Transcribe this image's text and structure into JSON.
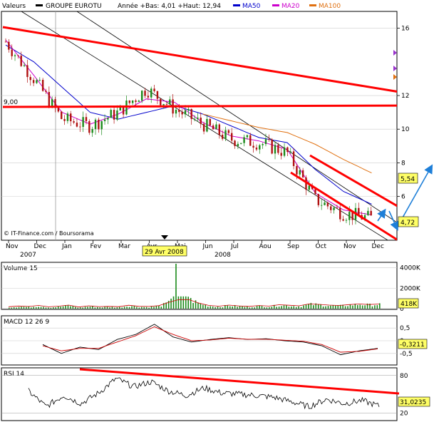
{
  "header": {
    "series_label": "Valeurs",
    "name": "GROUPE EUROTU",
    "range_text": "Année +Bas: 4,01 +Haut: 12,94",
    "ma50_label": "MA50",
    "ma20_label": "MA20",
    "ma100_label": "MA100"
  },
  "colors": {
    "price": "#1a8a1a",
    "price_down": "#b01010",
    "ma50": "#0000cc",
    "ma20": "#cc00cc",
    "ma100": "#e07010",
    "trendline": "#ff0000",
    "channel": "#000000",
    "volume": "#1a8a1a",
    "arrow": "#1e7fd8"
  },
  "chart_data": [
    {
      "type": "line",
      "title": "GROUPE EUROTU",
      "ylim": [
        3.4,
        17
      ],
      "y_ticks": [
        "16",
        "12",
        "10",
        "8",
        "6"
      ],
      "x_ticks": [
        "Nov",
        "Dec",
        "Jan",
        "Fev",
        "Mar",
        "Avr",
        "Mai",
        "Jun",
        "Jul",
        "Aou",
        "Sep",
        "Oct",
        "Nov",
        "Dec"
      ],
      "year_labels": [
        "2007",
        "2008"
      ],
      "annotations": {
        "level_label": "9,00",
        "date_marker": "29 Avr 2008",
        "last_price": "4,72",
        "ma_value": "5,54",
        "credit": "© IT-Finance.com / Boursorama"
      },
      "series": [
        {
          "name": "Valeurs",
          "x": [
            "Nov",
            "Dec",
            "Jan",
            "Fev",
            "Mar",
            "Avr",
            "Mai",
            "Jun",
            "Jul",
            "Aou",
            "Sep",
            "Oct",
            "Nov",
            "Dec"
          ],
          "values": [
            15.2,
            13.0,
            10.6,
            10.2,
            11.0,
            12.4,
            11.2,
            10.3,
            9.4,
            9.2,
            8.6,
            5.8,
            5.0,
            4.7
          ]
        },
        {
          "name": "MA50",
          "x": [
            "Nov",
            "Dec",
            "Jan",
            "Fev",
            "Mar",
            "Avr",
            "Mai",
            "Jun",
            "Jul",
            "Aou",
            "Sep",
            "Oct",
            "Nov",
            "Dec"
          ],
          "values": [
            15.0,
            14.0,
            12.5,
            11.0,
            10.6,
            11.0,
            11.4,
            10.9,
            10.2,
            9.5,
            9.2,
            7.6,
            6.3,
            5.54
          ]
        },
        {
          "name": "MA20",
          "x": [
            "Nov",
            "Dec",
            "Jan",
            "Fev",
            "Mar",
            "Avr",
            "Mai",
            "Jun",
            "Jul",
            "Aou",
            "Sep",
            "Oct",
            "Nov",
            "Dec"
          ],
          "values": [
            15.3,
            13.2,
            11.0,
            10.3,
            10.9,
            11.8,
            11.6,
            10.4,
            9.6,
            9.3,
            8.8,
            6.2,
            5.2,
            4.9
          ]
        },
        {
          "name": "MA100",
          "x": [
            "Jun",
            "Jul",
            "Aou",
            "Sep",
            "Oct",
            "Nov",
            "Dec"
          ],
          "values": [
            10.9,
            10.5,
            10.1,
            9.8,
            9.1,
            8.2,
            7.4
          ]
        }
      ]
    },
    {
      "type": "bar",
      "title": "Volume 15",
      "y_ticks": [
        "4000K",
        "2000K",
        "0"
      ],
      "last_value": "418K",
      "ylim": [
        0,
        4400
      ],
      "values": [
        120,
        200,
        150,
        260,
        110,
        180,
        300,
        90,
        220,
        140,
        160,
        130,
        280,
        170,
        150,
        240,
        600,
        4400,
        900,
        520,
        260,
        180,
        300,
        210,
        160,
        250,
        190,
        340,
        280,
        220,
        420,
        380,
        300,
        260,
        350,
        420,
        360,
        418
      ]
    },
    {
      "type": "line",
      "title": "MACD 12 26 9",
      "y_ticks": [
        "0,5",
        "0",
        "-0,5"
      ],
      "last_value": "-0,3211",
      "ylim": [
        -0.9,
        0.9
      ],
      "series": [
        {
          "name": "MACD",
          "values": [
            -0.15,
            -0.5,
            -0.25,
            -0.35,
            0.05,
            0.25,
            0.65,
            0.15,
            -0.05,
            0.05,
            0.12,
            0.05,
            0.08,
            0.0,
            -0.05,
            -0.2,
            -0.55,
            -0.4,
            -0.3
          ]
        },
        {
          "name": "Signal",
          "values": [
            -0.2,
            -0.4,
            -0.3,
            -0.3,
            -0.05,
            0.2,
            0.55,
            0.25,
            0.0,
            0.03,
            0.1,
            0.06,
            0.06,
            0.02,
            -0.02,
            -0.15,
            -0.45,
            -0.42,
            -0.32
          ]
        }
      ]
    },
    {
      "type": "line",
      "title": "RSI 14",
      "y_ticks": [
        "80",
        "20"
      ],
      "last_value": "31,0235",
      "ylim": [
        10,
        90
      ],
      "series": [
        {
          "name": "RSI 14",
          "values": [
            55,
            30,
            48,
            35,
            52,
            75,
            62,
            70,
            55,
            48,
            60,
            52,
            50,
            48,
            45,
            38,
            30,
            42,
            35,
            40,
            31
          ]
        }
      ]
    }
  ]
}
